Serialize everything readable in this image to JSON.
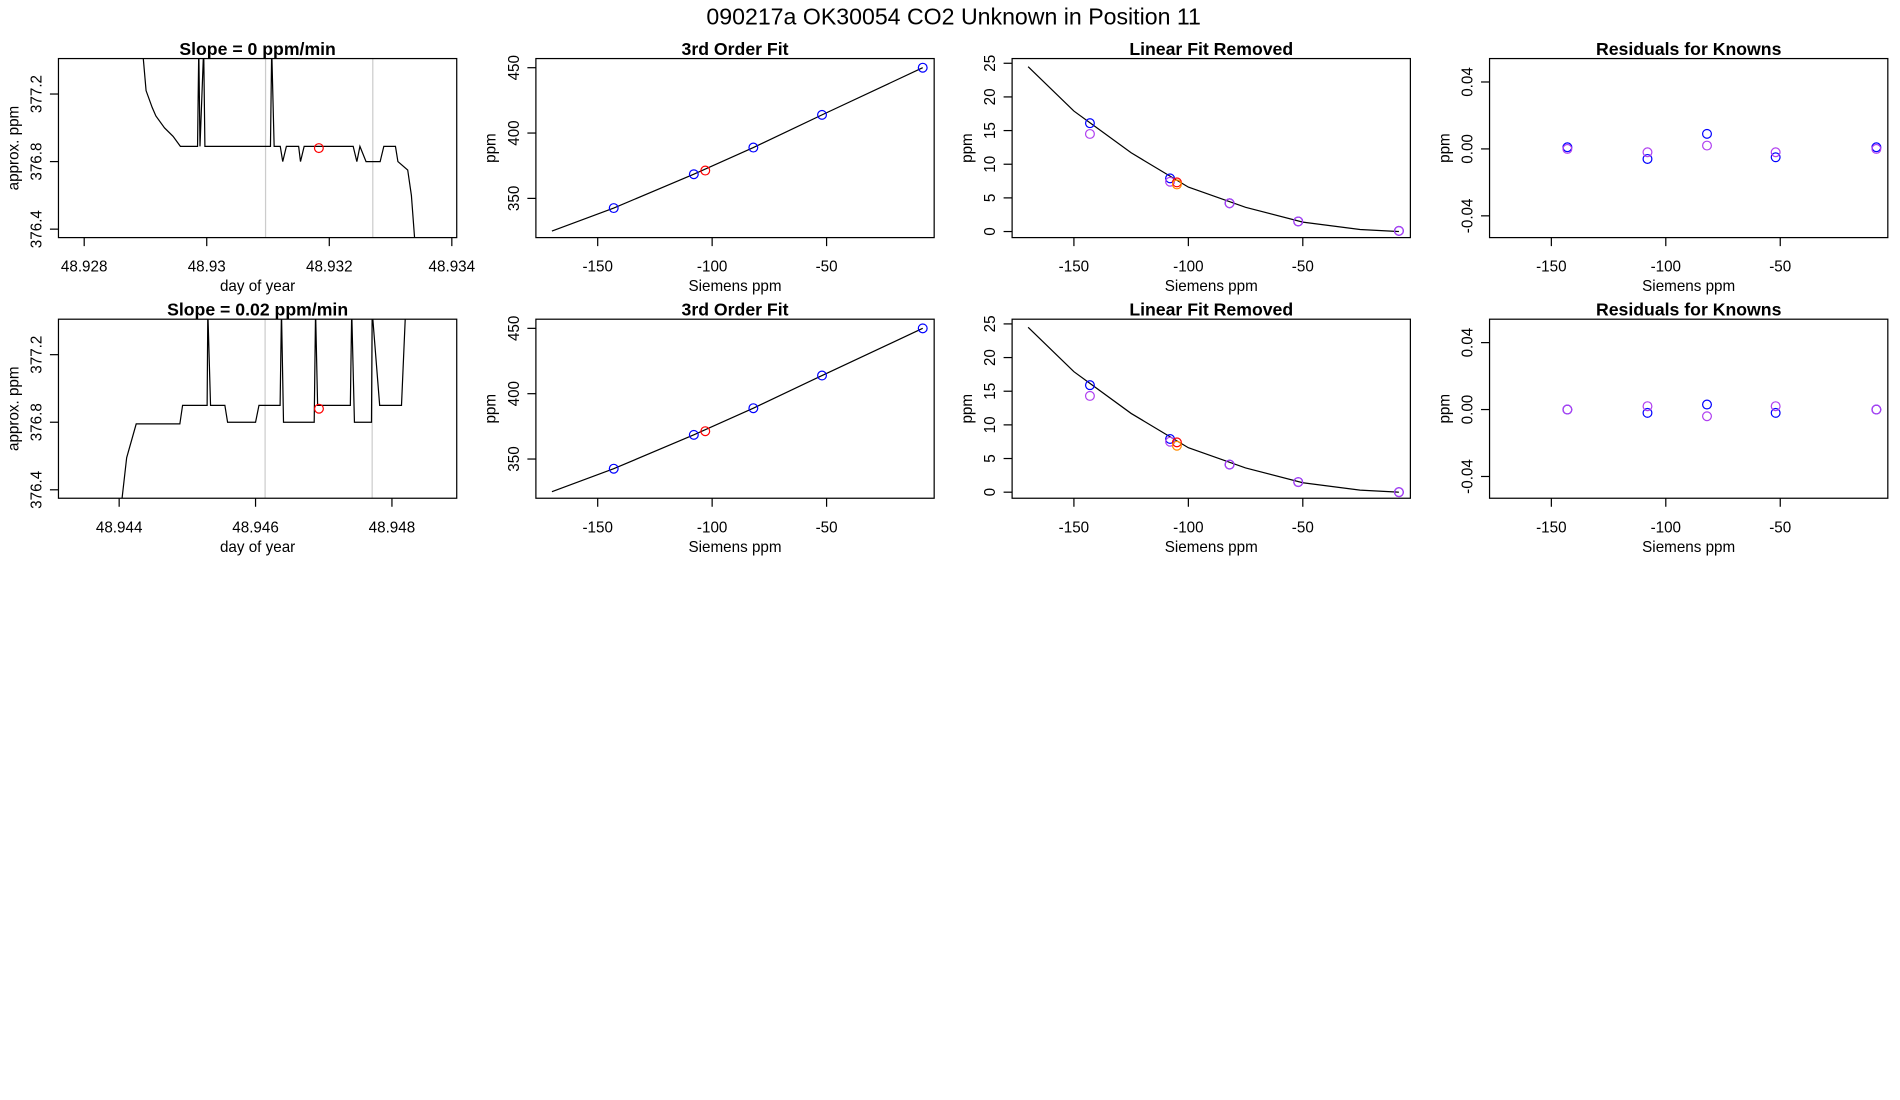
{
  "title": "090217a      OK30054   CO2 Unknown in Position  11",
  "chart_data": [
    {
      "type": "line",
      "title": "Slope =  0  ppm/min",
      "xlabel": "day of year",
      "ylabel": "approx. ppm",
      "xlim": [
        48.92758,
        48.93408
      ],
      "ylim": [
        376.35,
        377.41
      ],
      "xticks": [
        48.928,
        48.93,
        48.932,
        48.934
      ],
      "yticks": [
        376.4,
        376.8,
        377.2
      ],
      "vlines": [
        48.93096,
        48.93271
      ],
      "vline_color": "#cccccc",
      "series": [
        {
          "mode": "line",
          "color": "#000000",
          "x": [
            48.92895,
            48.92901,
            48.92911,
            48.92917,
            48.92931,
            48.92945,
            48.92957,
            48.92985,
            48.92987,
            48.92989,
            48.92995,
            48.92997,
            48.93104,
            48.93106,
            48.9311,
            48.9312,
            48.93124,
            48.9313,
            48.9315,
            48.93153,
            48.93159,
            48.93239,
            48.93245,
            48.9325,
            48.9326,
            48.93283,
            48.93289,
            48.93308,
            48.93312,
            48.93328,
            48.93334,
            48.9334
          ],
          "values": [
            377.47,
            377.22,
            377.12,
            377.07,
            377.0,
            376.95,
            376.89,
            376.89,
            377.47,
            376.89,
            377.47,
            376.89,
            376.89,
            377.47,
            376.89,
            376.89,
            376.8,
            376.89,
            376.89,
            376.8,
            376.89,
            376.89,
            376.8,
            376.89,
            376.8,
            376.8,
            376.89,
            376.89,
            376.8,
            376.75,
            376.6,
            376.31
          ]
        },
        {
          "mode": "points",
          "color": "#ff0000",
          "x": [
            48.93183
          ],
          "values": [
            376.88
          ]
        }
      ]
    },
    {
      "type": "scatter",
      "title": "3rd Order Fit",
      "xlabel": "Siemens ppm",
      "ylabel": "ppm",
      "xlim": [
        -177,
        -3
      ],
      "ylim": [
        320,
        457
      ],
      "xticks": [
        -150,
        -100,
        -50
      ],
      "yticks": [
        350,
        400,
        450
      ],
      "series": [
        {
          "mode": "line",
          "color": "#000000",
          "x": [
            -170,
            -143,
            -108,
            -82,
            -52,
            -8
          ],
          "values": [
            325,
            342.6,
            368.5,
            388.9,
            413.9,
            450
          ]
        },
        {
          "mode": "points",
          "color": "#0000ff",
          "x": [
            -143,
            -108,
            -82,
            -52,
            -8
          ],
          "values": [
            342.6,
            368.5,
            388.9,
            413.9,
            450
          ]
        },
        {
          "mode": "points",
          "color": "#ff0000",
          "x": [
            -103
          ],
          "values": [
            371.3
          ]
        }
      ]
    },
    {
      "type": "scatter",
      "title": "Linear Fit Removed",
      "xlabel": "Siemens ppm",
      "ylabel": "ppm",
      "xlim": [
        -177,
        -3
      ],
      "ylim": [
        -0.9,
        25.7
      ],
      "xticks": [
        -150,
        -100,
        -50
      ],
      "yticks": [
        0,
        5,
        10,
        15,
        20,
        25
      ],
      "series": [
        {
          "mode": "line",
          "color": "#000000",
          "x": [
            -170,
            -150,
            -125,
            -100,
            -75,
            -50,
            -25,
            -8
          ],
          "values": [
            24.5,
            17.9,
            11.7,
            6.6,
            3.6,
            1.4,
            0.3,
            0
          ]
        },
        {
          "mode": "points",
          "color": "#0000ff",
          "x": [
            -143,
            -108,
            -82,
            -52,
            -8
          ],
          "values": [
            16.1,
            7.9,
            4.2,
            1.5,
            0.1
          ]
        },
        {
          "mode": "points",
          "color": "#b040f0",
          "x": [
            -143,
            -108,
            -82,
            -52,
            -8
          ],
          "values": [
            14.5,
            7.4,
            4.2,
            1.5,
            0.1
          ]
        },
        {
          "mode": "points",
          "color": "#ff0000",
          "x": [
            -105
          ],
          "values": [
            7.3
          ]
        },
        {
          "mode": "points",
          "color": "#ff8c00",
          "x": [
            -105
          ],
          "values": [
            7.0
          ]
        }
      ]
    },
    {
      "type": "scatter",
      "title": "Residuals for Knowns",
      "xlabel": "Siemens ppm",
      "ylabel": "ppm",
      "xlim": [
        -177,
        -3
      ],
      "ylim": [
        -0.053,
        0.054
      ],
      "xticks": [
        -150,
        -100,
        -50
      ],
      "yticks": [
        -0.04,
        {
          "value": 0,
          "label": "0.00"
        },
        0.04
      ],
      "series": [
        {
          "mode": "points",
          "color": "#0000ff",
          "x": [
            -143,
            -108,
            -82,
            -52,
            -8
          ],
          "values": [
            0.001,
            -0.006,
            0.009,
            -0.005,
            0.001
          ]
        },
        {
          "mode": "points",
          "color": "#b040f0",
          "x": [
            -143,
            -108,
            -82,
            -52,
            -8
          ],
          "values": [
            0.0,
            -0.002,
            0.002,
            -0.002,
            0.0
          ]
        }
      ]
    },
    {
      "type": "line",
      "title": "Slope =  0.02  ppm/min",
      "xlabel": "day of year",
      "ylabel": "approx. ppm",
      "xlim": [
        48.94311,
        48.94895
      ],
      "ylim": [
        376.35,
        377.41
      ],
      "xticks": [
        48.944,
        48.946,
        48.948
      ],
      "yticks": [
        376.4,
        376.8,
        377.2
      ],
      "vlines": [
        48.94614,
        48.94771
      ],
      "vline_color": "#cccccc",
      "series": [
        {
          "mode": "line",
          "color": "#000000",
          "x": [
            48.94404,
            48.94411,
            48.94418,
            48.94425,
            48.94489,
            48.94493,
            48.94529,
            48.9453,
            48.94534,
            48.94555,
            48.94559,
            48.94582,
            48.946,
            48.94605,
            48.94636,
            48.94638,
            48.94641,
            48.94686,
            48.94688,
            48.94691,
            48.94739,
            48.94741,
            48.94745,
            48.9477,
            48.94771,
            48.94782,
            48.94814,
            48.9482
          ],
          "values": [
            376.34,
            376.59,
            376.69,
            376.79,
            376.79,
            376.9,
            376.9,
            377.46,
            376.9,
            376.9,
            376.8,
            376.8,
            376.8,
            376.9,
            376.9,
            377.46,
            376.8,
            376.8,
            377.46,
            376.9,
            376.9,
            377.46,
            376.8,
            376.8,
            377.46,
            376.9,
            376.9,
            377.46
          ]
        },
        {
          "mode": "points",
          "color": "#ff0000",
          "x": [
            48.94693
          ],
          "values": [
            376.88
          ]
        }
      ]
    },
    {
      "type": "scatter",
      "title": "3rd Order Fit",
      "xlabel": "Siemens ppm",
      "ylabel": "ppm",
      "xlim": [
        -177,
        -3
      ],
      "ylim": [
        320,
        457
      ],
      "xticks": [
        -150,
        -100,
        -50
      ],
      "yticks": [
        350,
        400,
        450
      ],
      "series": [
        {
          "mode": "line",
          "color": "#000000",
          "x": [
            -170,
            -143,
            -108,
            -82,
            -52,
            -8
          ],
          "values": [
            325,
            342.6,
            368.5,
            388.9,
            413.9,
            450
          ]
        },
        {
          "mode": "points",
          "color": "#0000ff",
          "x": [
            -143,
            -108,
            -82,
            -52,
            -8
          ],
          "values": [
            342.6,
            368.5,
            388.9,
            413.9,
            450
          ]
        },
        {
          "mode": "points",
          "color": "#ff0000",
          "x": [
            -103
          ],
          "values": [
            371.3
          ]
        }
      ]
    },
    {
      "type": "scatter",
      "title": "Linear Fit Removed",
      "xlabel": "Siemens ppm",
      "ylabel": "ppm",
      "xlim": [
        -177,
        -3
      ],
      "ylim": [
        -0.9,
        25.7
      ],
      "xticks": [
        -150,
        -100,
        -50
      ],
      "yticks": [
        0,
        5,
        10,
        15,
        20,
        25
      ],
      "series": [
        {
          "mode": "line",
          "color": "#000000",
          "x": [
            -170,
            -150,
            -125,
            -100,
            -75,
            -50,
            -25,
            -8
          ],
          "values": [
            24.5,
            17.9,
            11.7,
            6.6,
            3.6,
            1.4,
            0.3,
            0
          ]
        },
        {
          "mode": "points",
          "color": "#0000ff",
          "x": [
            -143,
            -108,
            -82,
            -52,
            -8
          ],
          "values": [
            15.9,
            7.9,
            4.1,
            1.5,
            0
          ]
        },
        {
          "mode": "points",
          "color": "#b040f0",
          "x": [
            -143,
            -108,
            -82,
            -52,
            -8
          ],
          "values": [
            14.3,
            7.5,
            4.1,
            1.5,
            0
          ]
        },
        {
          "mode": "points",
          "color": "#ff0000",
          "x": [
            -105
          ],
          "values": [
            7.4
          ]
        },
        {
          "mode": "points",
          "color": "#ff8c00",
          "x": [
            -105
          ],
          "values": [
            6.9
          ]
        }
      ]
    },
    {
      "type": "scatter",
      "title": "Residuals for Knowns",
      "xlabel": "Siemens ppm",
      "ylabel": "ppm",
      "xlim": [
        -177,
        -3
      ],
      "ylim": [
        -0.053,
        0.054
      ],
      "xticks": [
        -150,
        -100,
        -50
      ],
      "yticks": [
        -0.04,
        {
          "value": 0,
          "label": "0.00"
        },
        0.04
      ],
      "series": [
        {
          "mode": "points",
          "color": "#0000ff",
          "x": [
            -143,
            -108,
            -82,
            -52,
            -8
          ],
          "values": [
            0,
            -0.002,
            0.003,
            -0.002,
            0
          ]
        },
        {
          "mode": "points",
          "color": "#b040f0",
          "x": [
            -143,
            -108,
            -82,
            -52,
            -8
          ],
          "values": [
            0,
            0.002,
            -0.004,
            0.002,
            0
          ]
        }
      ]
    }
  ]
}
